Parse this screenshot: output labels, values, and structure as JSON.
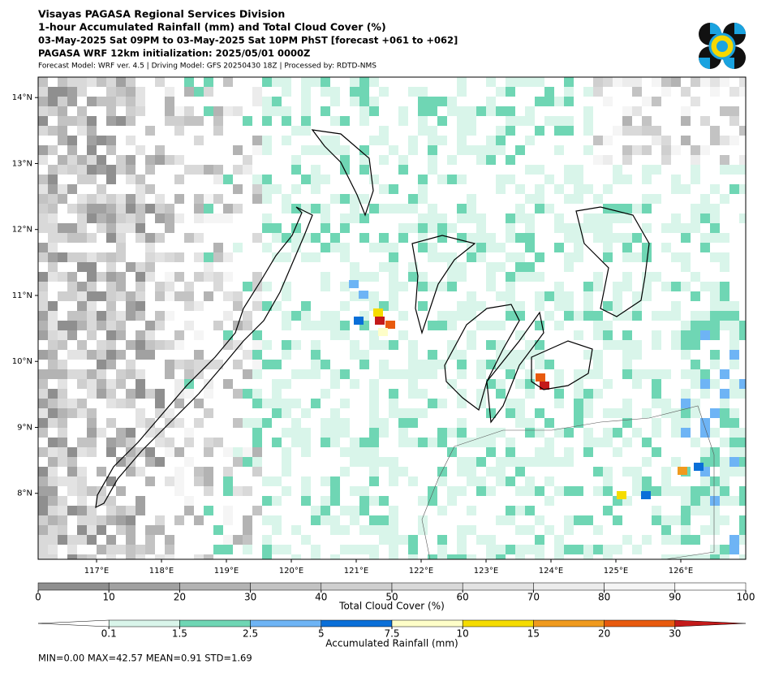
{
  "header": {
    "lines": [
      "Visayas PAGASA Regional Services Division",
      "1-hour Accumulated Rainfall (mm) and Total Cloud Cover (%)",
      "03-May-2025 Sat 09PM to 03-May-2025 Sat 10PM PhST [forecast +061 to +062]",
      "PAGASA WRF 12km initialization: 2025/05/01 0000Z"
    ],
    "note": "Forecast Model: WRF ver. 4.5 | Driving Model: GFS 20250430 18Z | Processed by: RDTD-NMS"
  },
  "map": {
    "lon_range": [
      116.1,
      127.0
    ],
    "lat_range": [
      7.0,
      14.31
    ],
    "lat_ticks": [
      {
        "value": 8,
        "label": "8°N"
      },
      {
        "value": 9,
        "label": "9°N"
      },
      {
        "value": 10,
        "label": "10°N"
      },
      {
        "value": 11,
        "label": "11°N"
      },
      {
        "value": 12,
        "label": "12°N"
      },
      {
        "value": 13,
        "label": "13°N"
      },
      {
        "value": 14,
        "label": "14°N"
      }
    ],
    "lon_ticks": [
      {
        "value": 117,
        "label": "117°E"
      },
      {
        "value": 118,
        "label": "118°E"
      },
      {
        "value": 119,
        "label": "119°E"
      },
      {
        "value": 120,
        "label": "120°E"
      },
      {
        "value": 121,
        "label": "121°E"
      },
      {
        "value": 122,
        "label": "122°E"
      },
      {
        "value": 123,
        "label": "123°E"
      },
      {
        "value": 124,
        "label": "124°E"
      },
      {
        "value": 125,
        "label": "125°E"
      },
      {
        "value": 126,
        "label": "126°E"
      }
    ]
  },
  "cloud_bar": {
    "label": "Total Cloud Cover (%)",
    "ticks": [
      0,
      10,
      20,
      30,
      40,
      50,
      60,
      70,
      80,
      90,
      100
    ],
    "colors": [
      "#8f8f8f",
      "#a1a1a1",
      "#b3b3b3",
      "#c3c3c3",
      "#cfcfcf",
      "#d9d9d9",
      "#e3e3e3",
      "#ececec",
      "#f5f5f5",
      "#ffffff"
    ]
  },
  "rain_bar": {
    "label": "Accumulated Rainfall (mm)",
    "ticks": [
      0.1,
      1.5,
      2.5,
      5,
      7.5,
      10,
      15,
      20,
      30
    ],
    "colors": [
      "#ffffff",
      "#d9f5ea",
      "#6fd6b4",
      "#6eb4f5",
      "#0a6fd8",
      "#fefec8",
      "#f5dc00",
      "#f09a1e",
      "#e85a0e",
      "#c41a1a"
    ]
  },
  "stats": "MIN=0.00   MAX=42.57   MEAN=0.91   STD=1.69"
}
